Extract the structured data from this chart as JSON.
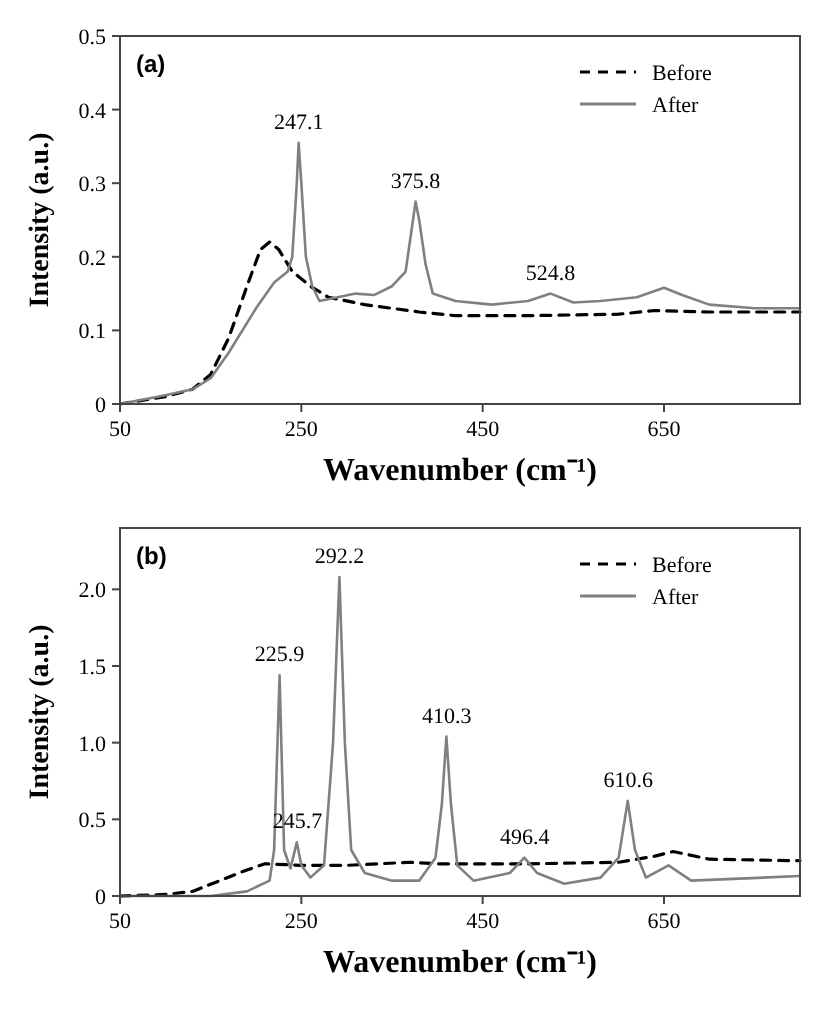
{
  "chart_data": [
    {
      "type": "line",
      "xlabel": "Wavenumber (cm⁻¹)",
      "ylabel": "Intensity (a.u.)",
      "xlim": [
        50,
        800
      ],
      "ylim": [
        0,
        0.5
      ],
      "xticks": [
        50,
        250,
        450,
        650
      ],
      "yticks": [
        0,
        0.1,
        0.2,
        0.3,
        0.4,
        0.5
      ],
      "grid": false,
      "legend": "top right",
      "marker": "none",
      "annotations": [
        "(a)",
        {
          "text": "247.1",
          "x": 247.1,
          "y": 0.355
        },
        {
          "text": "375.8",
          "x": 375.8,
          "y": 0.275
        },
        {
          "text": "524.8",
          "x": 524.8,
          "y": 0.15
        }
      ],
      "series": [
        {
          "name": "Before",
          "color": "#000000",
          "line_style": "dashed",
          "x": [
            50,
            100,
            130,
            150,
            170,
            190,
            205,
            215,
            225,
            240,
            260,
            280,
            320,
            380,
            420,
            500,
            600,
            640,
            700,
            800
          ],
          "values": [
            0,
            0.01,
            0.02,
            0.04,
            0.09,
            0.16,
            0.21,
            0.22,
            0.21,
            0.18,
            0.16,
            0.145,
            0.135,
            0.125,
            0.12,
            0.12,
            0.122,
            0.127,
            0.125,
            0.125
          ]
        },
        {
          "name": "After",
          "color": "#808080",
          "line_style": "solid",
          "x": [
            50,
            100,
            130,
            150,
            170,
            200,
            220,
            235,
            240,
            245,
            247,
            250,
            255,
            262,
            270,
            290,
            310,
            330,
            350,
            365,
            372,
            376,
            380,
            387,
            395,
            420,
            460,
            500,
            525,
            550,
            580,
            620,
            650,
            670,
            700,
            750,
            800
          ],
          "values": [
            0,
            0.012,
            0.02,
            0.035,
            0.07,
            0.13,
            0.165,
            0.18,
            0.2,
            0.3,
            0.355,
            0.3,
            0.2,
            0.16,
            0.14,
            0.145,
            0.15,
            0.148,
            0.16,
            0.18,
            0.24,
            0.275,
            0.25,
            0.19,
            0.15,
            0.14,
            0.135,
            0.14,
            0.15,
            0.138,
            0.14,
            0.145,
            0.158,
            0.148,
            0.135,
            0.13,
            0.13
          ]
        }
      ]
    },
    {
      "type": "line",
      "xlabel": "Wavenumber (cm⁻¹)",
      "ylabel": "Intensity (a.u.)",
      "xlim": [
        50,
        800
      ],
      "ylim": [
        0,
        2.4
      ],
      "xticks": [
        50,
        250,
        450,
        650
      ],
      "yticks": [
        0,
        0.5,
        {
          "value": 1,
          "label": "1.0"
        },
        1.5,
        {
          "value": 2,
          "label": "2.0"
        }
      ],
      "grid": false,
      "legend": "top right",
      "marker": "none",
      "annotations": [
        "(b)",
        {
          "text": "225.9",
          "x": 225.9,
          "y": 1.44
        },
        {
          "text": "245.7",
          "x": 245.7,
          "y": 0.35
        },
        {
          "text": "292.2",
          "x": 292.2,
          "y": 2.08
        },
        {
          "text": "410.3",
          "x": 410.3,
          "y": 1.04
        },
        {
          "text": "496.4",
          "x": 496.4,
          "y": 0.25
        },
        {
          "text": "610.6",
          "x": 610.6,
          "y": 0.62
        }
      ],
      "series": [
        {
          "name": "Before",
          "color": "#000000",
          "line_style": "dashed",
          "x": [
            50,
            100,
            130,
            160,
            190,
            210,
            250,
            300,
            370,
            400,
            500,
            600,
            640,
            660,
            700,
            800
          ],
          "values": [
            0,
            0.01,
            0.03,
            0.1,
            0.17,
            0.21,
            0.2,
            0.2,
            0.22,
            0.21,
            0.21,
            0.22,
            0.26,
            0.29,
            0.24,
            0.23
          ]
        },
        {
          "name": "After",
          "color": "#808080",
          "line_style": "solid",
          "x": [
            50,
            150,
            190,
            215,
            220,
            226,
            231,
            238,
            245,
            250,
            260,
            275,
            285,
            292,
            298,
            305,
            320,
            350,
            380,
            398,
            405,
            410,
            415,
            422,
            440,
            480,
            496,
            510,
            540,
            580,
            600,
            610,
            618,
            630,
            655,
            680,
            800
          ],
          "values": [
            0,
            0,
            0.03,
            0.1,
            0.3,
            1.44,
            0.3,
            0.18,
            0.35,
            0.2,
            0.12,
            0.2,
            1.0,
            2.08,
            1.0,
            0.3,
            0.15,
            0.1,
            0.1,
            0.25,
            0.6,
            1.04,
            0.6,
            0.2,
            0.1,
            0.15,
            0.25,
            0.15,
            0.08,
            0.12,
            0.25,
            0.62,
            0.3,
            0.12,
            0.2,
            0.1,
            0.13
          ]
        }
      ]
    }
  ]
}
